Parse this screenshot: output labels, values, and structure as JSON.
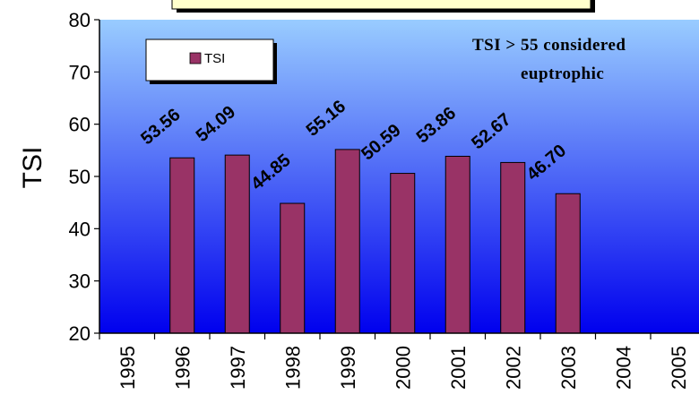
{
  "chart_data": {
    "type": "bar",
    "categories": [
      "1995",
      "1996",
      "1997",
      "1998",
      "1999",
      "2000",
      "2001",
      "2002",
      "2003",
      "2004",
      "2005"
    ],
    "series": [
      {
        "name": "TSI",
        "values": [
          null,
          53.56,
          54.09,
          44.85,
          55.16,
          50.59,
          53.86,
          52.67,
          46.7,
          null,
          null
        ]
      }
    ],
    "data_labels": [
      "",
      "53.56",
      "54.09",
      "44.85",
      "55.16",
      "50.59",
      "53.86",
      "52.67",
      "46.70",
      "",
      ""
    ],
    "title": "",
    "xlabel": "",
    "ylabel": "TSI",
    "ylim": [
      20,
      80
    ],
    "yticks": [
      20,
      30,
      40,
      50,
      60,
      70,
      80
    ],
    "grid": false,
    "legend": {
      "entries": [
        "TSI"
      ],
      "placement": "top-left"
    },
    "annotation": {
      "line1": "TSI > 55 considered",
      "line2": "euptrophic"
    },
    "colors": {
      "bar": "#993366",
      "plot_top": "#99ccff",
      "plot_bottom": "#0000ee",
      "title_box": "#ffffcc"
    }
  }
}
